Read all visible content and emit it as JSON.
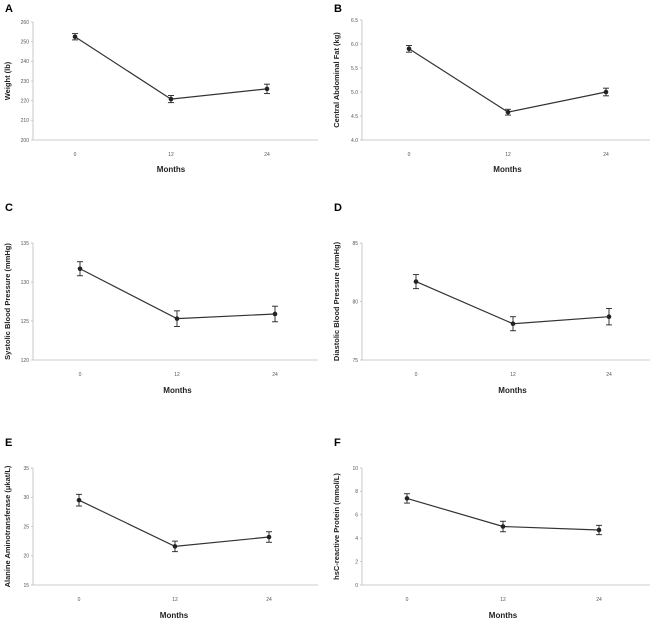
{
  "chart_data": [
    {
      "panel": "A",
      "type": "line",
      "categories": [
        "0",
        "12",
        "24"
      ],
      "values": [
        252.5,
        220.8,
        226.0
      ],
      "errors": [
        1.6,
        1.8,
        2.4
      ],
      "xlabel": "Months",
      "ylabel": "Weight (lb)",
      "ylim": [
        200,
        260
      ],
      "yticks": [
        "200",
        "210",
        "220",
        "230",
        "240",
        "250",
        "260"
      ]
    },
    {
      "panel": "B",
      "type": "line",
      "categories": [
        "0",
        "12",
        "24"
      ],
      "values": [
        5.9,
        4.58,
        5.0
      ],
      "errors": [
        0.07,
        0.06,
        0.08
      ],
      "xlabel": "Months",
      "ylabel": "Central Abdominal Fat (kg)",
      "ylim": [
        4.0,
        6.5
      ],
      "yticks": [
        "4.0",
        "4.5",
        "5.0",
        "5.5",
        "6.0",
        "6.5"
      ]
    },
    {
      "panel": "C",
      "type": "line",
      "categories": [
        "0",
        "12",
        "24"
      ],
      "values": [
        131.7,
        125.3,
        125.9
      ],
      "errors": [
        0.9,
        1.0,
        1.0
      ],
      "xlabel": "Months",
      "ylabel": "Systolic Blood Pressure (mmHg)",
      "ylim": [
        120,
        135
      ],
      "yticks": [
        "120",
        "125",
        "130",
        "135"
      ]
    },
    {
      "panel": "D",
      "type": "line",
      "categories": [
        "0",
        "12",
        "24"
      ],
      "values": [
        81.7,
        78.1,
        78.7
      ],
      "errors": [
        0.6,
        0.6,
        0.7
      ],
      "xlabel": "Months",
      "ylabel": "Diastolic Blood Pressure (mmHg)",
      "ylim": [
        75,
        85
      ],
      "yticks": [
        "75",
        "80",
        "85"
      ]
    },
    {
      "panel": "E",
      "type": "line",
      "categories": [
        "0",
        "12",
        "24"
      ],
      "values": [
        29.5,
        21.6,
        23.2
      ],
      "errors": [
        1.0,
        0.9,
        0.9
      ],
      "xlabel": "Months",
      "ylabel": "Alanine Aminotransferase (μkat/L)",
      "ylim": [
        15,
        35
      ],
      "yticks": [
        "15",
        "20",
        "25",
        "30",
        "35"
      ]
    },
    {
      "panel": "F",
      "type": "line",
      "categories": [
        "0",
        "12",
        "24"
      ],
      "values": [
        7.4,
        5.0,
        4.7
      ],
      "errors": [
        0.4,
        0.45,
        0.4
      ],
      "xlabel": "Months",
      "ylabel": "hsC-reactive Protein (mmol/L)",
      "ylim": [
        0,
        10
      ],
      "yticks": [
        "0",
        "2",
        "4",
        "6",
        "8",
        "10"
      ]
    }
  ]
}
